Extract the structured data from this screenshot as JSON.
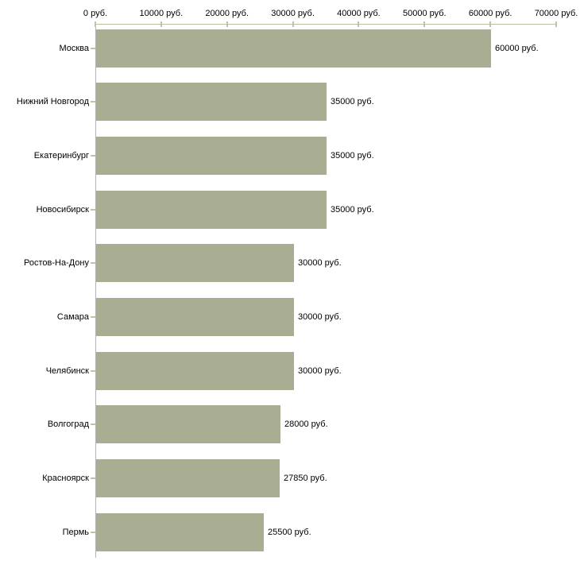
{
  "chart_data": {
    "type": "bar",
    "orientation": "horizontal",
    "title": "",
    "xlabel": "",
    "ylabel": "",
    "xlim": [
      0,
      70000
    ],
    "grid": false,
    "legend": false,
    "categories": [
      "Москва",
      "Нижний Новгород",
      "Екатеринбург",
      "Новосибирск",
      "Ростов-На-Дону",
      "Самара",
      "Челябинск",
      "Волгоград",
      "Красноярск",
      "Пермь"
    ],
    "values": [
      60000,
      35000,
      35000,
      35000,
      30000,
      30000,
      30000,
      28000,
      27850,
      25500
    ],
    "value_labels": [
      "60000 руб.",
      "35000 руб.",
      "35000 руб.",
      "35000 руб.",
      "30000 руб.",
      "30000 руб.",
      "30000 руб.",
      "28000 руб.",
      "27850 руб.",
      "25500 руб."
    ],
    "x_ticks": [
      0,
      10000,
      20000,
      30000,
      40000,
      50000,
      60000,
      70000
    ],
    "x_tick_labels": [
      "0 руб.",
      "10000 руб.",
      "20000 руб.",
      "30000 руб.",
      "40000 руб.",
      "50000 руб.",
      "60000 руб.",
      "70000 руб."
    ],
    "colors": {
      "bar_fill": "#a9ae92",
      "x_axis_line": "#bdbda5",
      "y_axis_line": "#b3b3b3",
      "tick_mark": "#c2c29e",
      "text": "#000000",
      "background": "#ffffff"
    }
  }
}
